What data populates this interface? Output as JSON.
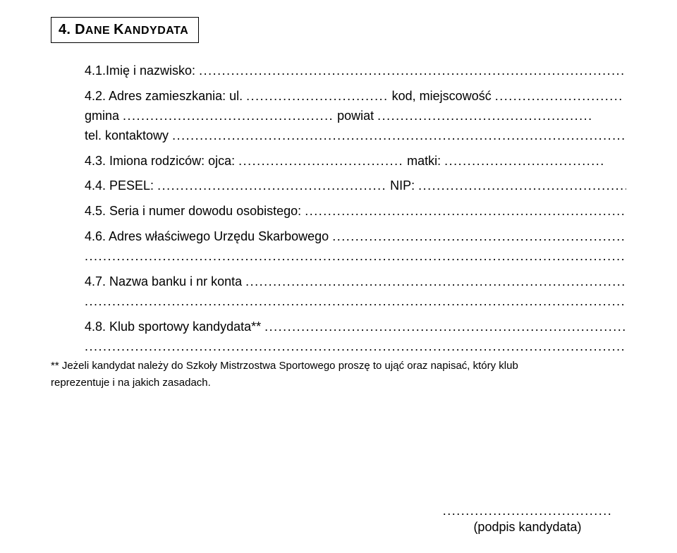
{
  "section": {
    "number": "4.",
    "title_main": "D",
    "title_smallcaps_1": "ANE ",
    "title_main_2": "K",
    "title_smallcaps_2": "ANDYDATA"
  },
  "fields": {
    "f1_label": "4.1.Imię i nazwisko: ",
    "f2_label": "4.2. Adres zamieszkania: ul. ",
    "f2_kod": " kod, miejscowość ",
    "f2_gmina": "gmina ",
    "f2_powiat": " powiat ",
    "f2_tel": "tel. kontaktowy ",
    "f3_label": "4.3. Imiona rodziców: ojca: ",
    "f3_matki": " matki: ",
    "f4_label": "4.4. PESEL: ",
    "f4_nip": " NIP: ",
    "f5_label": "4.5. Seria i numer dowodu osobistego: ",
    "f6_label": "4.6. Adres właściwego Urzędu Skarbowego ",
    "f7_label": "4.7. Nazwa banku i nr konta ",
    "f8_label": "4.8. Klub sportowy kandydata** "
  },
  "footnote": {
    "line1": "** Jeżeli kandydat należy do Szkoły Mistrzostwa Sportowego proszę to ująć oraz napisać, który klub",
    "line2": "reprezentuje i na jakich zasadach."
  },
  "signature": {
    "label": "(podpis kandydata)"
  },
  "style": {
    "text_color": "#000000",
    "background_color": "#ffffff",
    "base_fontsize": 18,
    "title_fontsize": 20,
    "footnote_fontsize": 15,
    "border_color": "#000000"
  }
}
